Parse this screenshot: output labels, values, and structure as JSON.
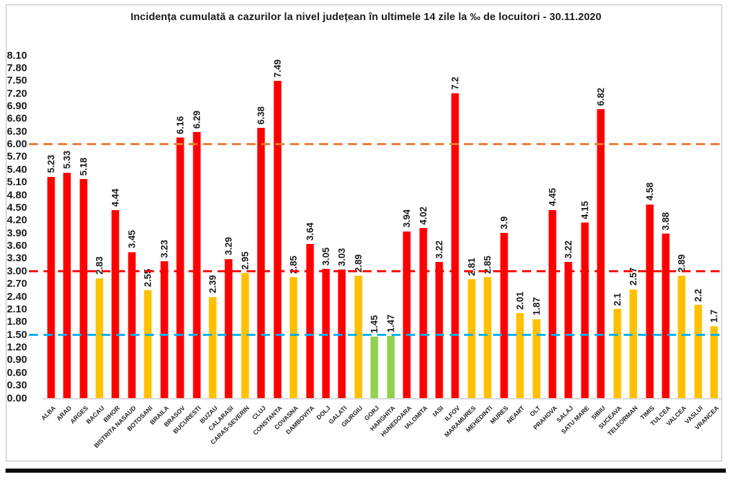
{
  "chart_data": {
    "type": "bar",
    "title": "Incidența cumulată a cazurilor la nivel județean în ultimele 14 zile la ‰ de locuitori - 30.11.2020",
    "xlabel": "",
    "ylabel": "",
    "ylim": [
      0,
      8.1
    ],
    "ytick_step": 0.3,
    "ytick_labels": [
      "0.00",
      "0.30",
      "0.60",
      "0.90",
      "1.20",
      "1.50",
      "1.80",
      "2.10",
      "2.40",
      "2.70",
      "3.00",
      "3.30",
      "3.60",
      "3.90",
      "4.20",
      "4.50",
      "4.80",
      "5.10",
      "5.40",
      "5.70",
      "6.00",
      "6.30",
      "6.60",
      "6.90",
      "7.20",
      "7.50",
      "7.80",
      "8.10"
    ],
    "grid": false,
    "legend_position": "none",
    "palette": {
      "red": "#ff0000",
      "yellow": "#ffc000",
      "green": "#92d050"
    },
    "thresholds": [
      {
        "name": "upper-threshold-6",
        "value": 6.0,
        "color": "#ed7d31"
      },
      {
        "name": "middle-threshold-3",
        "value": 3.0,
        "color": "#ff0000"
      },
      {
        "name": "lower-threshold-1-5",
        "value": 1.5,
        "color": "#00b0f0"
      }
    ],
    "bars": [
      {
        "county": "ALBA",
        "value": 5.23,
        "label": "5.23",
        "color": "red"
      },
      {
        "county": "ARAD",
        "value": 5.33,
        "label": "5.33",
        "color": "red"
      },
      {
        "county": "ARGES",
        "value": 5.18,
        "label": "5.18",
        "color": "red"
      },
      {
        "county": "BACAU",
        "value": 2.83,
        "label": "2.83",
        "color": "yellow"
      },
      {
        "county": "BIHOR",
        "value": 4.44,
        "label": "4.44",
        "color": "red"
      },
      {
        "county": "BISTRITA NASAUD",
        "value": 3.45,
        "label": "3.45",
        "color": "red"
      },
      {
        "county": "BOTOSANI",
        "value": 2.55,
        "label": "2.55",
        "color": "yellow"
      },
      {
        "county": "BRAILA",
        "value": 3.23,
        "label": "3.23",
        "color": "red"
      },
      {
        "county": "BRASOV",
        "value": 6.16,
        "label": "6.16",
        "color": "red"
      },
      {
        "county": "BUCURESTI",
        "value": 6.29,
        "label": "6.29",
        "color": "red"
      },
      {
        "county": "BUZAU",
        "value": 2.39,
        "label": "2.39",
        "color": "yellow"
      },
      {
        "county": "CALARASI",
        "value": 3.29,
        "label": "3.29",
        "color": "red"
      },
      {
        "county": "CARAS-SEVERIN",
        "value": 2.95,
        "label": "2.95",
        "color": "yellow"
      },
      {
        "county": "CLUJ",
        "value": 6.38,
        "label": "6.38",
        "color": "red"
      },
      {
        "county": "CONSTANTA",
        "value": 7.49,
        "label": "7.49",
        "color": "red"
      },
      {
        "county": "COVASNA",
        "value": 2.85,
        "label": "2.85",
        "color": "yellow"
      },
      {
        "county": "DAMBOVITA",
        "value": 3.64,
        "label": "3.64",
        "color": "red"
      },
      {
        "county": "DOLJ",
        "value": 3.05,
        "label": "3.05",
        "color": "red"
      },
      {
        "county": "GALATI",
        "value": 3.03,
        "label": "3.03",
        "color": "red"
      },
      {
        "county": "GIURGIU",
        "value": 2.89,
        "label": "2.89",
        "color": "yellow"
      },
      {
        "county": "GORJ",
        "value": 1.45,
        "label": "1.45",
        "color": "green"
      },
      {
        "county": "HARGHITA",
        "value": 1.47,
        "label": "1.47",
        "color": "green"
      },
      {
        "county": "HUNEDOARA",
        "value": 3.94,
        "label": "3.94",
        "color": "red"
      },
      {
        "county": "IALOMITA",
        "value": 4.02,
        "label": "4.02",
        "color": "red"
      },
      {
        "county": "IASI",
        "value": 3.22,
        "label": "3.22",
        "color": "red"
      },
      {
        "county": "ILFOV",
        "value": 7.2,
        "label": "7.2",
        "color": "red"
      },
      {
        "county": "MARAMURES",
        "value": 2.81,
        "label": "2.81",
        "color": "yellow"
      },
      {
        "county": "MEHEDINTI",
        "value": 2.85,
        "label": "2.85",
        "color": "yellow"
      },
      {
        "county": "MURES",
        "value": 3.9,
        "label": "3.9",
        "color": "red"
      },
      {
        "county": "NEAMT",
        "value": 2.01,
        "label": "2.01",
        "color": "yellow"
      },
      {
        "county": "OLT",
        "value": 1.87,
        "label": "1.87",
        "color": "yellow"
      },
      {
        "county": "PRAHOVA",
        "value": 4.45,
        "label": "4.45",
        "color": "red"
      },
      {
        "county": "SALAJ",
        "value": 3.22,
        "label": "3.22",
        "color": "red"
      },
      {
        "county": "SATU MARE",
        "value": 4.15,
        "label": "4.15",
        "color": "red"
      },
      {
        "county": "SIBIU",
        "value": 6.82,
        "label": "6.82",
        "color": "red"
      },
      {
        "county": "SUCEAVA",
        "value": 2.1,
        "label": "2.1",
        "color": "yellow"
      },
      {
        "county": "TELEORMAN",
        "value": 2.57,
        "label": "2.57",
        "color": "yellow"
      },
      {
        "county": "TIMIS",
        "value": 4.58,
        "label": "4.58",
        "color": "red"
      },
      {
        "county": "TULCEA",
        "value": 3.88,
        "label": "3.88",
        "color": "red"
      },
      {
        "county": "VALCEA",
        "value": 2.89,
        "label": "2.89",
        "color": "yellow"
      },
      {
        "county": "VASLUI",
        "value": 2.2,
        "label": "2.2",
        "color": "yellow"
      },
      {
        "county": "VRANCEA",
        "value": 1.7,
        "label": "1.7",
        "color": "yellow"
      }
    ]
  }
}
